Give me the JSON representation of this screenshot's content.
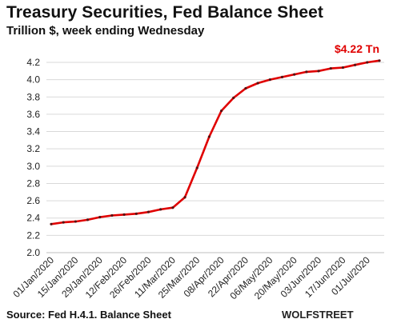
{
  "title": "Treasury Securities, Fed Balance Sheet",
  "subtitle": "Trillion $, week ending Wednesday",
  "source": "Source: Fed H.4.1. Balance Sheet",
  "watermark": "WOLFSTREET",
  "colors": {
    "line": "#e00000",
    "grid": "#d9d9d9",
    "marker": "#5a1010"
  },
  "chart_data": {
    "type": "line",
    "title": "Treasury Securities, Fed Balance Sheet",
    "subtitle": "Trillion $, week ending Wednesday",
    "xlabel": "",
    "ylabel": "",
    "ylim": [
      2.0,
      4.2
    ],
    "yticks": [
      "2.0",
      "2.2",
      "2.4",
      "2.6",
      "2.8",
      "3.0",
      "3.2",
      "3.4",
      "3.6",
      "3.8",
      "4.0",
      "4.2"
    ],
    "grid": true,
    "end_label": "$4.22 Tn",
    "x_tick_labels": [
      "01/Jan/2020",
      "15/Jan/2020",
      "29/Jan/2020",
      "12/Feb/2020",
      "26/Feb/2020",
      "11/Mar/2020",
      "25/Mar/2020",
      "08/Apr/2020",
      "22/Apr/2020",
      "06/May/2020",
      "20/May/2020",
      "03/Jun/2020",
      "17/Jun/2020",
      "01/Jul/2020"
    ],
    "series": [
      {
        "x": [
          "01/Jan/2020",
          "08/Jan/2020",
          "15/Jan/2020",
          "22/Jan/2020",
          "29/Jan/2020",
          "05/Feb/2020",
          "12/Feb/2020",
          "19/Feb/2020",
          "26/Feb/2020",
          "04/Mar/2020",
          "11/Mar/2020",
          "18/Mar/2020",
          "25/Mar/2020",
          "01/Apr/2020",
          "08/Apr/2020",
          "15/Apr/2020",
          "22/Apr/2020",
          "29/Apr/2020",
          "06/May/2020",
          "13/May/2020",
          "20/May/2020",
          "27/May/2020",
          "03/Jun/2020",
          "10/Jun/2020",
          "17/Jun/2020",
          "24/Jun/2020",
          "01/Jul/2020",
          "08/Jul/2020"
        ],
        "values": [
          2.33,
          2.35,
          2.36,
          2.38,
          2.41,
          2.43,
          2.44,
          2.45,
          2.47,
          2.5,
          2.52,
          2.64,
          2.98,
          3.34,
          3.64,
          3.79,
          3.9,
          3.96,
          4.0,
          4.03,
          4.06,
          4.09,
          4.1,
          4.13,
          4.14,
          4.17,
          4.2,
          4.22
        ]
      }
    ]
  }
}
